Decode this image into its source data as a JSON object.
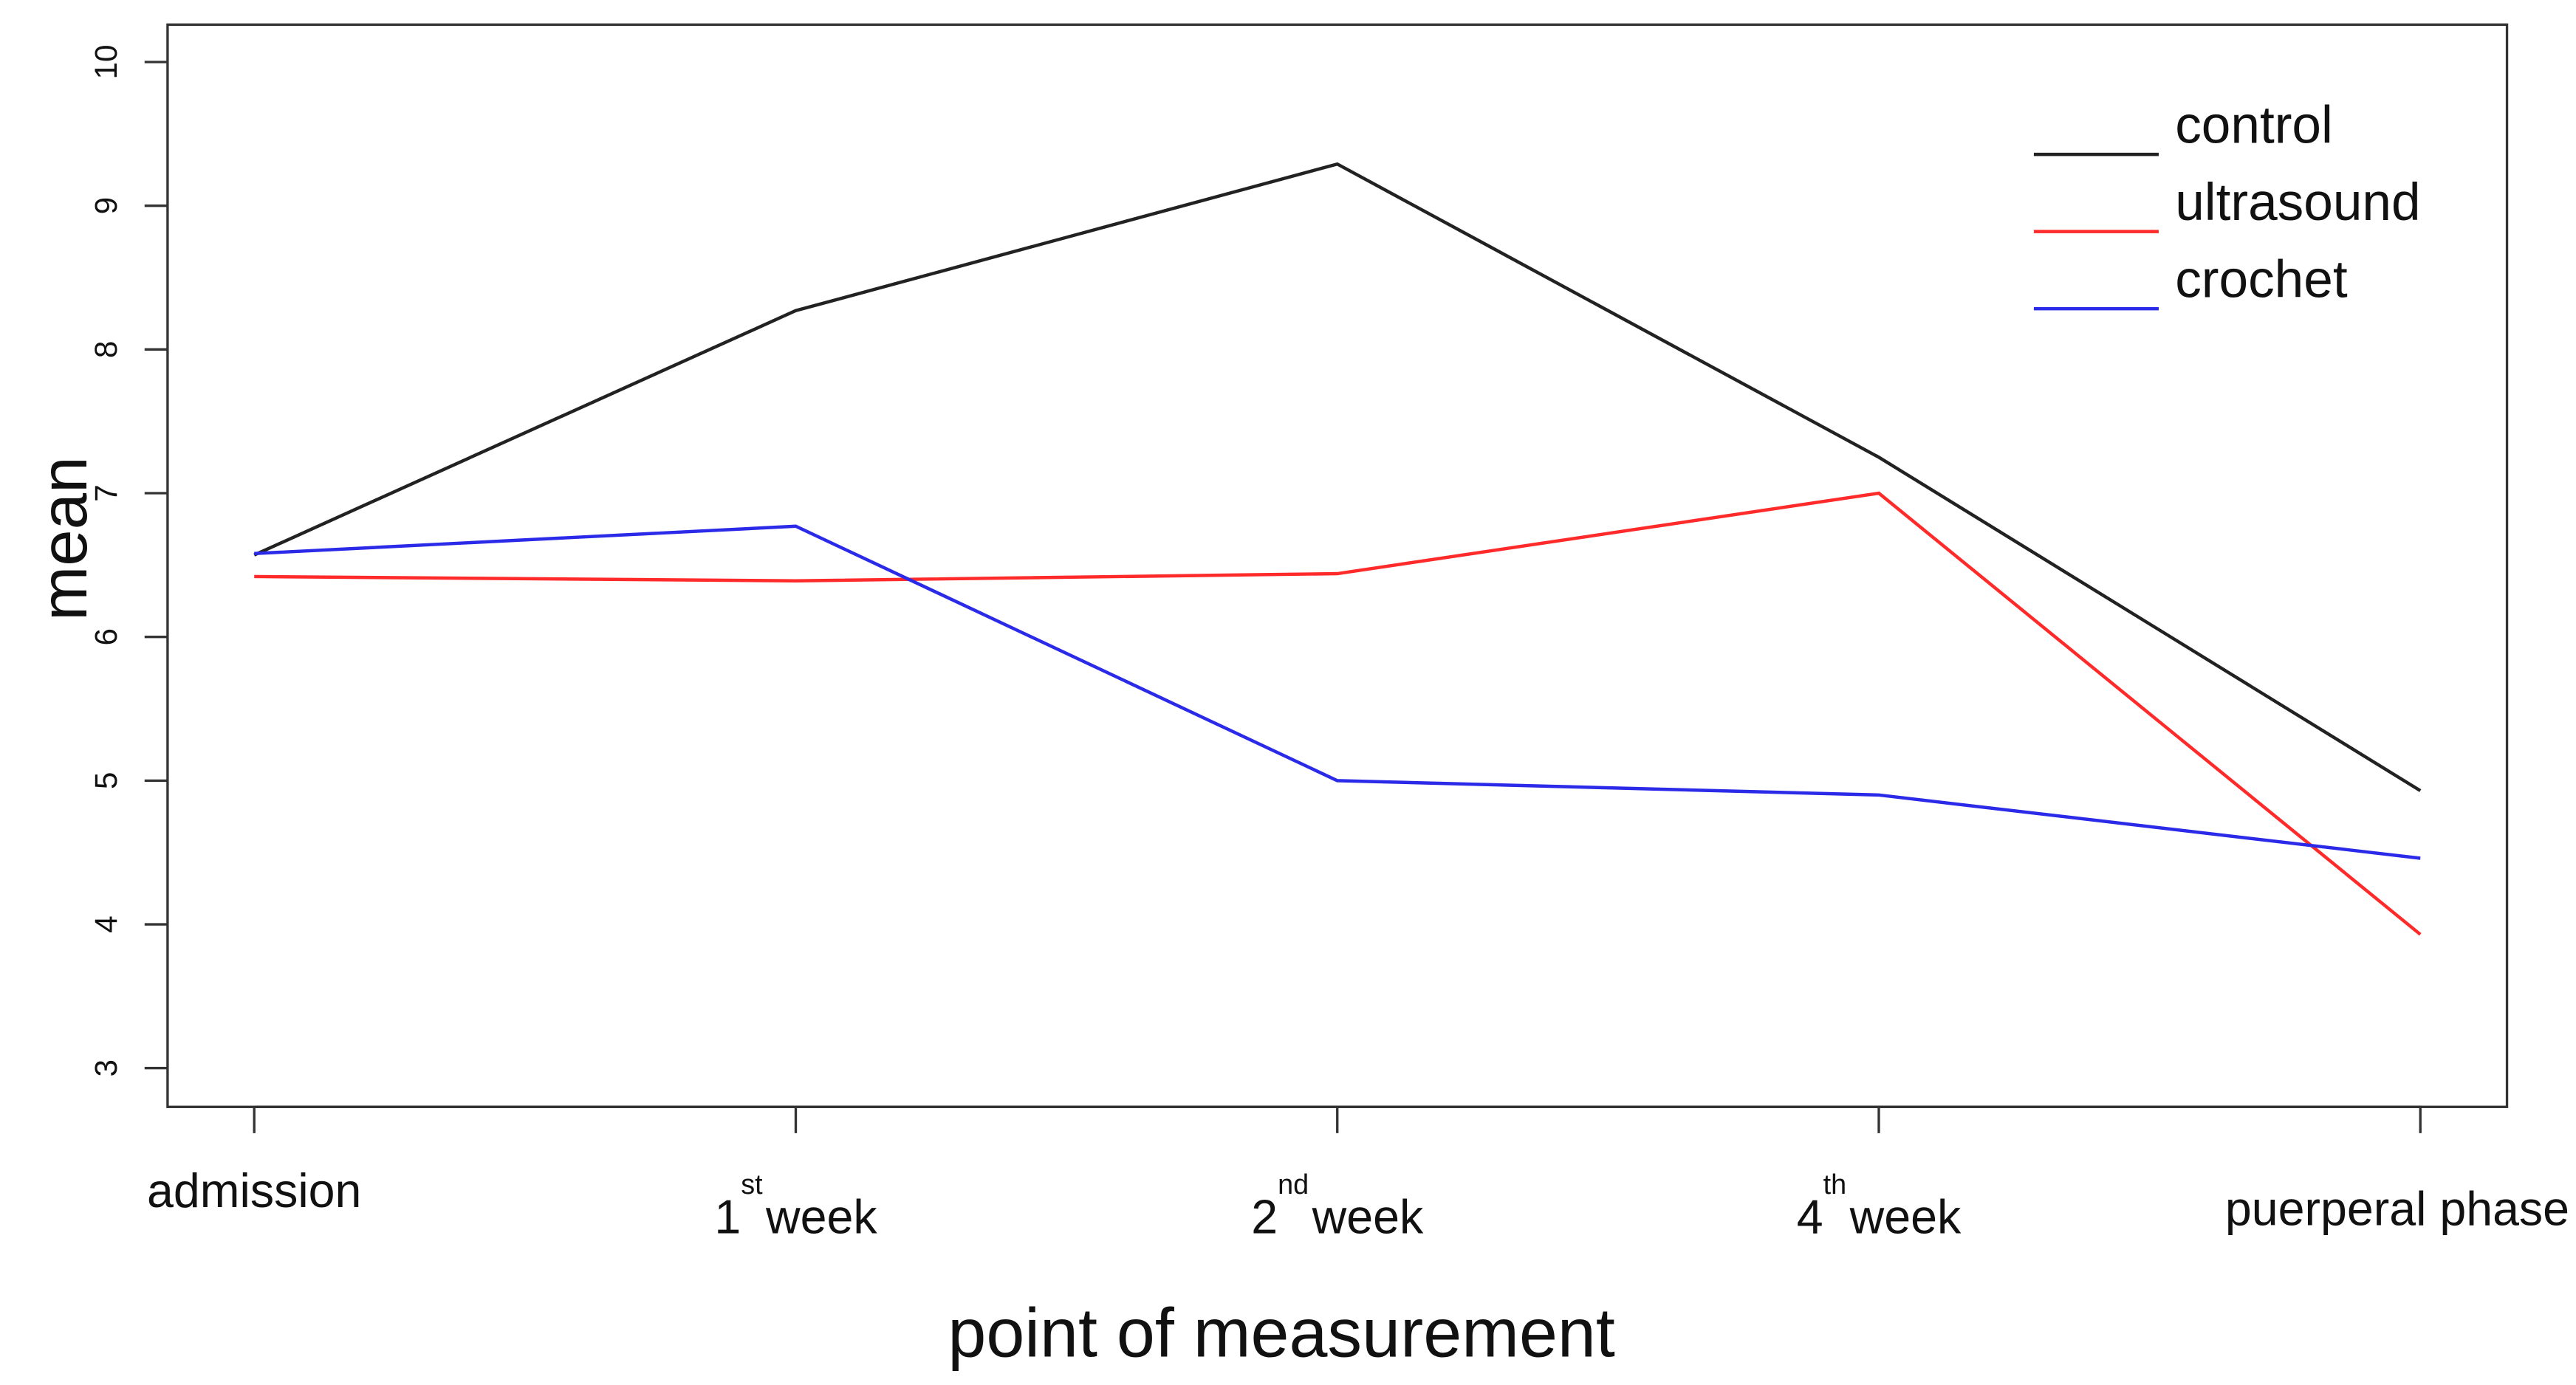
{
  "chart_data": {
    "type": "line",
    "xlabel": "point of measurement",
    "ylabel": "mean",
    "categories": [
      "admission",
      [
        "1",
        "st",
        "week"
      ],
      [
        "2",
        "nd",
        "week"
      ],
      [
        "4",
        "th",
        "week"
      ],
      "puerperal phase"
    ],
    "series": [
      {
        "name": "control",
        "color": "#222222",
        "values": [
          6.57,
          8.27,
          9.29,
          7.25,
          4.93
        ]
      },
      {
        "name": "ultrasound",
        "color": "#ff2a2a",
        "values": [
          6.42,
          6.39,
          6.44,
          7.0,
          3.93
        ]
      },
      {
        "name": "crochet",
        "color": "#2a2ae8",
        "values": [
          6.58,
          6.77,
          5.0,
          4.9,
          4.46
        ]
      }
    ],
    "ylim": [
      2.73,
      10.26
    ],
    "yticks": [
      3,
      4,
      5,
      6,
      7,
      8,
      9,
      10
    ],
    "legend": "top-right"
  }
}
